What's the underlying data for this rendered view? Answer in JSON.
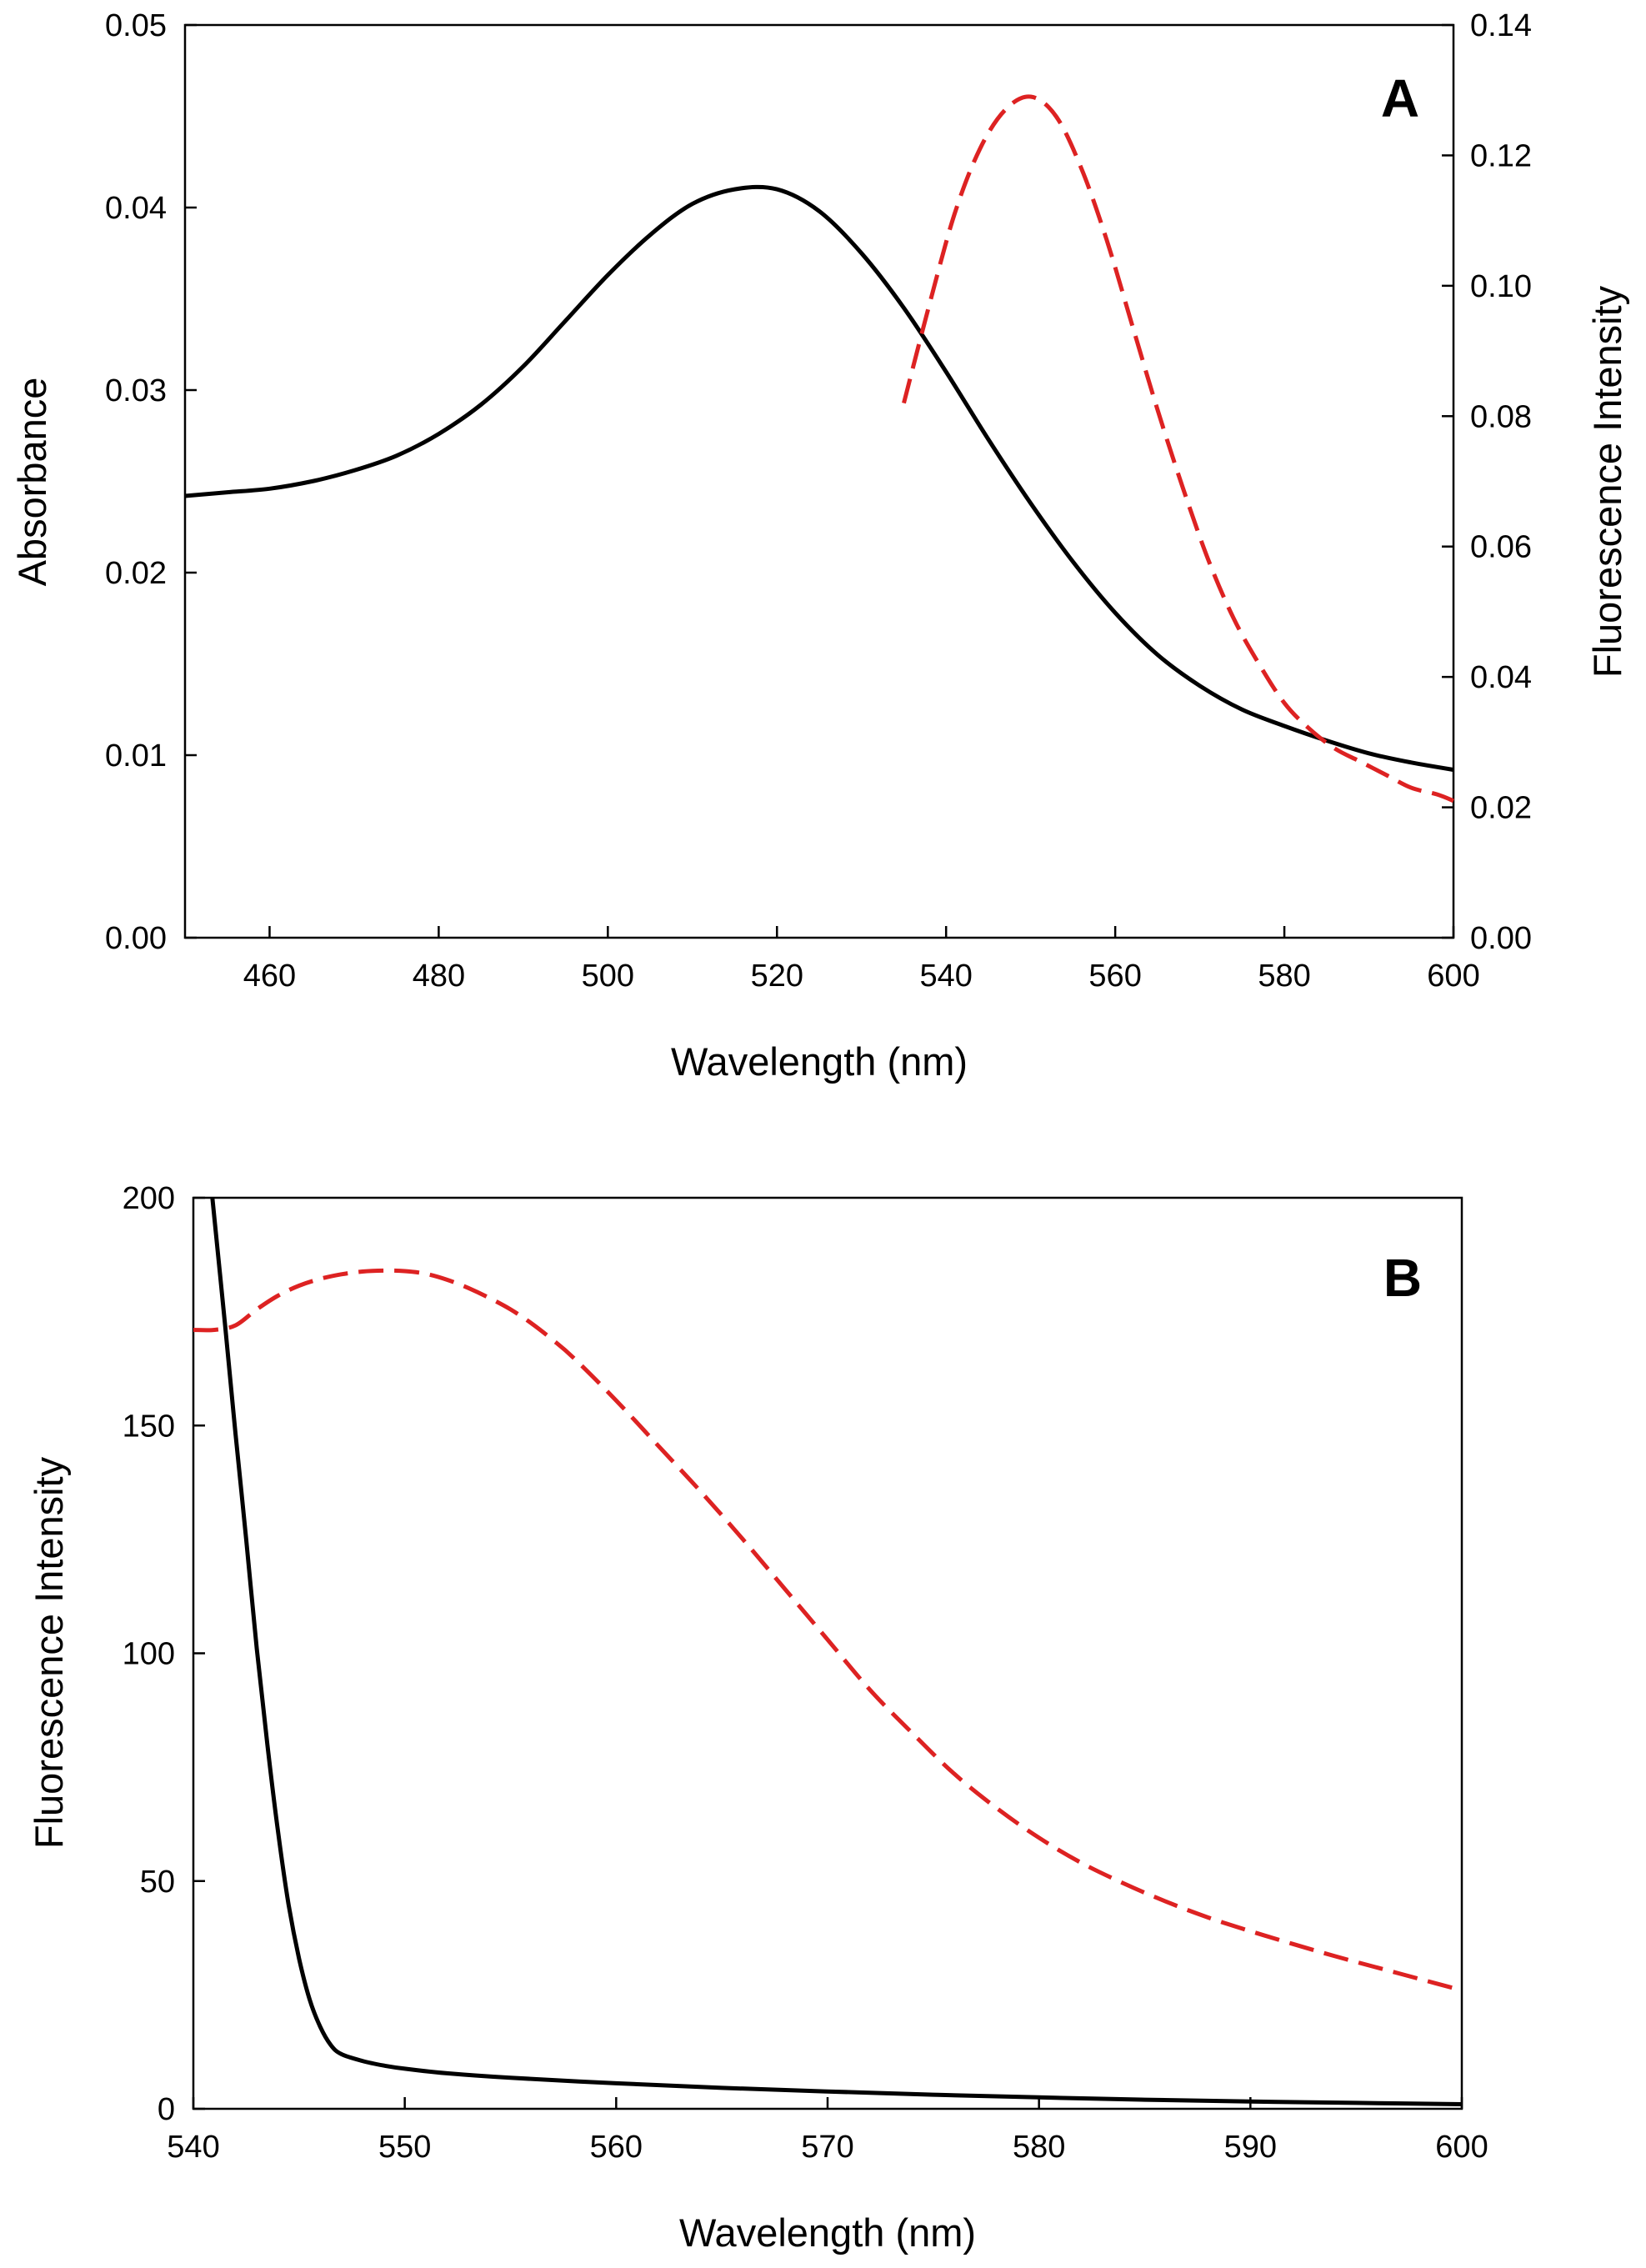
{
  "chart_data": [
    {
      "panel": "A",
      "type": "line",
      "panel_label": "A",
      "title": "",
      "xlabel": "Wavelength (nm)",
      "ylabel": "Absorbance",
      "y2label": "Fluorescence Intensity",
      "xlim": [
        450,
        600
      ],
      "ylim": [
        0,
        0.05
      ],
      "y2lim": [
        0,
        0.14
      ],
      "xticks": [
        460,
        480,
        500,
        520,
        540,
        560,
        580,
        600
      ],
      "xtick_labels": [
        "460",
        "480",
        "500",
        "520",
        "540",
        "560",
        "580",
        "600"
      ],
      "yticks": [
        0,
        0.01,
        0.02,
        0.03,
        0.04,
        0.05
      ],
      "ytick_labels": [
        "0.00",
        "0.01",
        "0.02",
        "0.03",
        "0.04",
        "0.05"
      ],
      "y2ticks": [
        0,
        0.02,
        0.04,
        0.06,
        0.08,
        0.1,
        0.12,
        0.14
      ],
      "y2tick_labels": [
        "0.00",
        "0.02",
        "0.04",
        "0.06",
        "0.08",
        "0.10",
        "0.12",
        "0.14"
      ],
      "grid": false,
      "series": [
        {
          "name": "Absorbance",
          "axis": "left",
          "color": "#000000",
          "dash": "solid",
          "x": [
            450,
            455,
            460,
            465,
            470,
            475,
            480,
            485,
            490,
            495,
            500,
            505,
            510,
            515,
            520,
            525,
            530,
            535,
            540,
            545,
            550,
            555,
            560,
            565,
            570,
            575,
            580,
            585,
            590,
            595,
            600
          ],
          "y": [
            0.0242,
            0.0244,
            0.0246,
            0.025,
            0.0256,
            0.0264,
            0.0276,
            0.0292,
            0.0313,
            0.0338,
            0.0363,
            0.0385,
            0.0402,
            0.041,
            0.041,
            0.0398,
            0.0375,
            0.0345,
            0.031,
            0.0273,
            0.0238,
            0.0206,
            0.0178,
            0.0155,
            0.0138,
            0.0125,
            0.0116,
            0.0108,
            0.0101,
            0.0096,
            0.0092
          ]
        },
        {
          "name": "Fluorescence",
          "axis": "right",
          "color": "#dd2222",
          "dash": "dashed",
          "x": [
            535,
            538,
            541,
            544,
            547,
            550,
            553,
            556,
            559,
            562,
            565,
            568,
            571,
            574,
            577,
            580,
            583,
            586,
            589,
            592,
            595,
            598,
            600
          ],
          "y": [
            0.082,
            0.097,
            0.111,
            0.121,
            0.127,
            0.129,
            0.126,
            0.118,
            0.107,
            0.094,
            0.081,
            0.069,
            0.058,
            0.049,
            0.042,
            0.036,
            0.032,
            0.029,
            0.027,
            0.025,
            0.023,
            0.022,
            0.021
          ]
        }
      ]
    },
    {
      "panel": "B",
      "type": "line",
      "panel_label": "B",
      "title": "",
      "xlabel": "Wavelength (nm)",
      "ylabel": "Fluorescence Intensity",
      "xlim": [
        540,
        600
      ],
      "ylim": [
        0,
        200
      ],
      "xticks": [
        540,
        550,
        560,
        570,
        580,
        590,
        600
      ],
      "xtick_labels": [
        "540",
        "550",
        "560",
        "570",
        "580",
        "590",
        "600"
      ],
      "yticks": [
        0,
        50,
        100,
        150,
        200
      ],
      "ytick_labels": [
        "0",
        "50",
        "100",
        "150",
        "200"
      ],
      "grid": false,
      "series": [
        {
          "name": "Black curve",
          "axis": "left",
          "color": "#000000",
          "dash": "solid",
          "x": [
            540.9,
            541.5,
            542,
            542.5,
            543,
            543.5,
            544,
            544.5,
            545,
            545.5,
            546,
            546.5,
            547,
            548,
            549,
            550,
            552,
            555,
            560,
            565,
            570,
            575,
            580,
            585,
            590,
            595,
            600
          ],
          "y": [
            200,
            172,
            148,
            125,
            101,
            80,
            61,
            45,
            33,
            24,
            18,
            14,
            12,
            10.5,
            9.5,
            8.8,
            7.8,
            6.8,
            5.6,
            4.6,
            3.8,
            3.1,
            2.5,
            2.0,
            1.6,
            1.3,
            1.0
          ]
        },
        {
          "name": "Red dashed curve",
          "axis": "left",
          "color": "#dd2222",
          "dash": "dashed",
          "x": [
            540,
            541,
            542,
            543,
            544,
            545,
            546,
            547,
            548,
            549,
            550,
            551,
            552,
            553,
            554,
            555,
            556,
            557,
            558,
            560,
            562,
            564,
            566,
            568,
            570,
            572,
            574,
            576,
            578,
            580,
            582,
            584,
            586,
            588,
            590,
            592,
            594,
            596,
            598,
            600
          ],
          "y": [
            171,
            171,
            172,
            175.5,
            178.5,
            180.7,
            182.2,
            183.2,
            183.8,
            184.0,
            183.9,
            183.3,
            182,
            180.2,
            178,
            175.5,
            172.4,
            168.8,
            164.8,
            155.5,
            145.5,
            135.5,
            125,
            114,
            103,
            92,
            82.5,
            73.5,
            66,
            59.5,
            54,
            49.5,
            45.5,
            42,
            39,
            36.2,
            33.5,
            31,
            28.5,
            26
          ]
        }
      ]
    }
  ]
}
